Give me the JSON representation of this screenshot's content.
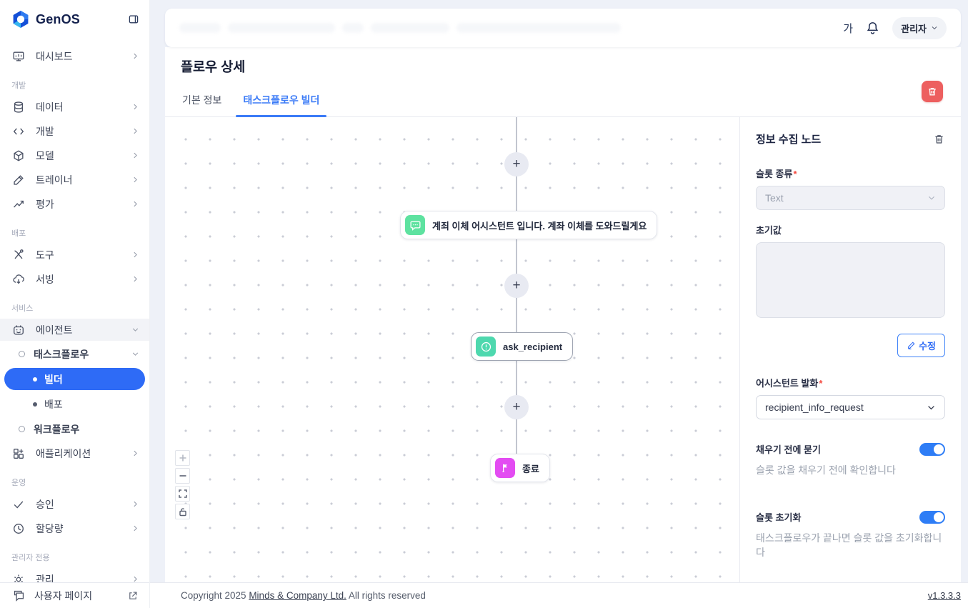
{
  "brand": {
    "name": "GenOS"
  },
  "header": {
    "font_size_label": "가",
    "user_label": "관리자"
  },
  "sidebar": {
    "items": [
      {
        "type": "item",
        "icon": "dashboard-icon",
        "label": "대시보드",
        "chevron": "right"
      },
      {
        "type": "section",
        "label": "개발"
      },
      {
        "type": "item",
        "icon": "database-icon",
        "label": "데이터",
        "chevron": "right"
      },
      {
        "type": "item",
        "icon": "code-icon",
        "label": "개발",
        "chevron": "right"
      },
      {
        "type": "item",
        "icon": "model-icon",
        "label": "모델",
        "chevron": "right"
      },
      {
        "type": "item",
        "icon": "trainer-icon",
        "label": "트레이너",
        "chevron": "right"
      },
      {
        "type": "item",
        "icon": "evaluation-icon",
        "label": "평가",
        "chevron": "right"
      },
      {
        "type": "section",
        "label": "배포"
      },
      {
        "type": "item",
        "icon": "tools-icon",
        "label": "도구",
        "chevron": "right"
      },
      {
        "type": "item",
        "icon": "serving-icon",
        "label": "서빙",
        "chevron": "right"
      },
      {
        "type": "section",
        "label": "서비스"
      },
      {
        "type": "item",
        "icon": "agent-icon",
        "label": "에이전트",
        "chevron": "down",
        "open": true
      },
      {
        "type": "sub",
        "label": "태스크플로우",
        "chevron": "down"
      },
      {
        "type": "sub2",
        "label": "빌더",
        "active": true
      },
      {
        "type": "sub2",
        "label": "배포"
      },
      {
        "type": "sub",
        "label": "워크플로우"
      },
      {
        "type": "item",
        "icon": "application-icon",
        "label": "애플리케이션",
        "chevron": "right"
      },
      {
        "type": "section",
        "label": "운영"
      },
      {
        "type": "item",
        "icon": "approval-icon",
        "label": "승인",
        "chevron": "right"
      },
      {
        "type": "item",
        "icon": "quota-icon",
        "label": "할당량",
        "chevron": "right"
      },
      {
        "type": "section",
        "label": "관리자 전용"
      },
      {
        "type": "item",
        "icon": "admin-icon",
        "label": "관리",
        "chevron": "right"
      }
    ],
    "bottom_item": {
      "label": "사용자 페이지"
    }
  },
  "page": {
    "title": "플로우 상세",
    "tabs": [
      {
        "label": "기본 정보"
      },
      {
        "label": "태스크플로우 빌더"
      }
    ],
    "required_mark": "*"
  },
  "canvas": {
    "plus_glyph": "+",
    "nodes": {
      "message": {
        "label": "계죄 이체 어시스턴트 입니다. 계좌 이체를 도와드릴게요"
      },
      "ask": {
        "label": "ask_recipient"
      },
      "end": {
        "label": "종료"
      }
    },
    "controls": [
      {
        "icon": "zoom-in-icon"
      },
      {
        "icon": "zoom-out-icon"
      },
      {
        "icon": "fit-view-icon"
      },
      {
        "icon": "lock-icon"
      }
    ]
  },
  "panel": {
    "title": "정보 수집 노드",
    "slot_type": {
      "label": "슬롯 종류",
      "value": "Text"
    },
    "initial_value": {
      "label": "초기값",
      "value": ""
    },
    "edit_button_label": "수정",
    "assistant_utterance": {
      "label": "어시스턴트 발화",
      "value": "recipient_info_request"
    },
    "ask_before_fill": {
      "label": "채우기 전에 묻기",
      "enabled": true,
      "help": "슬롯 값을 채우기 전에 확인합니다"
    },
    "slot_reset": {
      "label": "슬롯 초기화",
      "enabled": true,
      "help": "태스크플로우가 끝나면 슬롯 값을 초기화합니다"
    }
  },
  "footer": {
    "copyright_prefix": "Copyright 2025 ",
    "company": "Minds & Company Ltd.",
    "copyright_suffix": " All rights reserved",
    "version": "v1.3.3.3"
  },
  "colors": {
    "accent_blue": "#2e6bf6",
    "tab_blue": "#3b7bf7",
    "danger_red": "#ed5f5f",
    "node_green": "#5ee2a0",
    "node_teal": "#4ed8ae",
    "node_magenta": "#e34cf2",
    "toggle_blue": "#2e7df6"
  }
}
